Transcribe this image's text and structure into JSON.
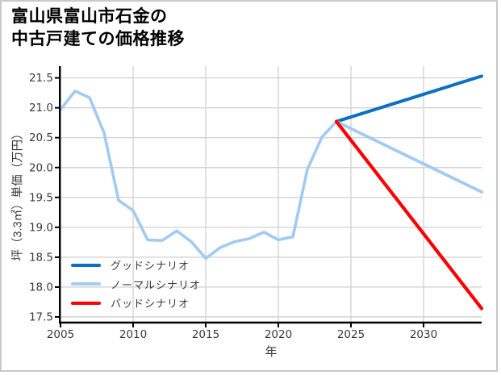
{
  "chart_data": {
    "type": "line",
    "title_lines": [
      "富山県富山市石金の",
      "中古戸建ての価格推移"
    ],
    "title": "富山県富山市石金の中古戸建ての価格推移",
    "xlabel": "年",
    "ylabel": "坪（3.3㎡）単価（万円）",
    "xlim": [
      2005,
      2034
    ],
    "ylim": [
      17.4,
      21.7
    ],
    "grid": true,
    "legend_position": "lower-left",
    "x_ticks": [
      "2005",
      "2010",
      "2015",
      "2020",
      "2025",
      "2030"
    ],
    "y_ticks": [
      "17.5",
      "18.0",
      "18.5",
      "19.0",
      "19.5",
      "20.0",
      "20.5",
      "21.0",
      "21.5"
    ],
    "series": [
      {
        "name": "history",
        "in_legend": false,
        "color": "#a2cbf2",
        "width": 3.6,
        "x": [
          2005,
          2006,
          2007,
          2008,
          2009,
          2010,
          2011,
          2012,
          2013,
          2014,
          2015,
          2016,
          2017,
          2018,
          2019,
          2020,
          2021,
          2022,
          2023,
          2024
        ],
        "y": [
          20.97,
          21.28,
          21.17,
          20.58,
          19.45,
          19.28,
          18.79,
          18.78,
          18.94,
          18.76,
          18.48,
          18.66,
          18.76,
          18.81,
          18.92,
          18.79,
          18.84,
          19.97,
          20.51,
          20.77
        ]
      },
      {
        "name": "good-scenario",
        "in_legend": true,
        "color": "#0d6fc4",
        "width": 4,
        "x": [
          2024,
          2034
        ],
        "y": [
          20.77,
          21.53
        ]
      },
      {
        "name": "normal-scenario",
        "in_legend": true,
        "color": "#a2cbf2",
        "width": 3.8,
        "x": [
          2024,
          2034
        ],
        "y": [
          20.77,
          19.59
        ]
      },
      {
        "name": "bad-scenario",
        "in_legend": true,
        "color": "#ff0000",
        "width": 4.2,
        "x": [
          2024,
          2034
        ],
        "y": [
          20.77,
          17.64
        ]
      }
    ],
    "legend": [
      {
        "label": "グッドシナリオ",
        "color": "#0d6fc4"
      },
      {
        "label": "ノーマルシナリオ",
        "color": "#a2cbf2"
      },
      {
        "label": "バッドシナリオ",
        "color": "#ff0000"
      }
    ],
    "colors": {
      "grid": "#d4d4d4",
      "spine": "#000000",
      "frame_border": "#c9c9c9",
      "tick_text": "#3a3a3a"
    }
  }
}
